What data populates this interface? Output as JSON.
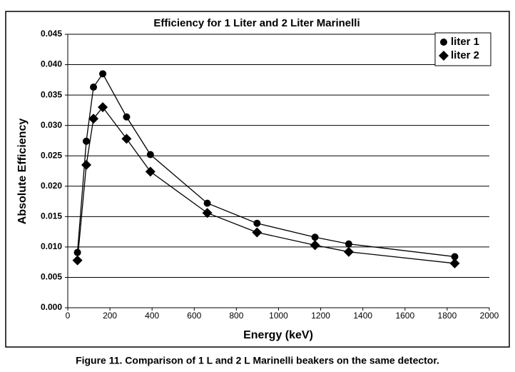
{
  "chart_data": {
    "type": "line",
    "title": "Efficiency for 1 Liter and 2 Liter Marinelli",
    "xlabel": "Energy (keV)",
    "ylabel": "Absolute Efficiency",
    "x": [
      46,
      88,
      122,
      166,
      279,
      392,
      662,
      898,
      1173,
      1333,
      1836
    ],
    "series": [
      {
        "name": "liter 1",
        "color": "#000000",
        "marker": "circle",
        "values": [
          0.0091,
          0.0274,
          0.0363,
          0.0385,
          0.0314,
          0.0252,
          0.0172,
          0.0139,
          0.0116,
          0.0105,
          0.0084
        ]
      },
      {
        "name": "liter 2",
        "color": "#000000",
        "marker": "diamond",
        "values": [
          0.0078,
          0.0235,
          0.0311,
          0.033,
          0.0278,
          0.0224,
          0.0156,
          0.0124,
          0.0103,
          0.0092,
          0.0073
        ]
      }
    ],
    "xlim": [
      0,
      2000
    ],
    "xticks": [
      0,
      200,
      400,
      600,
      800,
      1000,
      1200,
      1400,
      1600,
      1800,
      2000
    ],
    "ylim": [
      0,
      0.045
    ],
    "yticks": [
      {
        "value": 0,
        "label": "0.000"
      },
      0.005,
      {
        "value": 0.01,
        "label": "0.010"
      },
      0.015,
      {
        "value": 0.02,
        "label": "0.020"
      },
      0.025,
      {
        "value": 0.03,
        "label": "0.030"
      },
      0.035,
      {
        "value": 0.04,
        "label": "0.040"
      },
      0.045
    ],
    "grid": true,
    "legend": "top-right"
  },
  "caption": "Figure 11.  Comparison of 1 L and 2 L Marinelli beakers on the same detector."
}
